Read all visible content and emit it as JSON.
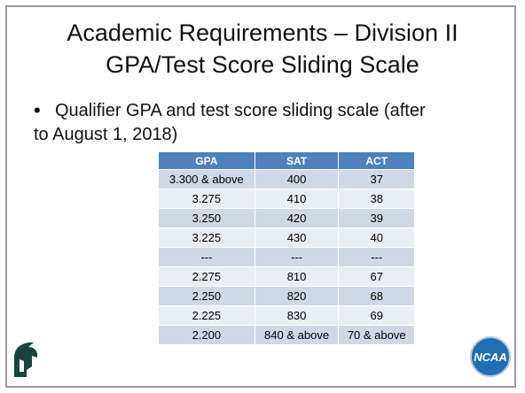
{
  "title": [
    "Academic Requirements – Division II",
    "GPA/Test Score Sliding Scale"
  ],
  "bullet": [
    "Qualifier GPA and test score sliding scale (after",
    "to August 1, 2018)"
  ],
  "table": {
    "header": [
      "GPA",
      "SAT",
      "ACT"
    ],
    "rows": [
      [
        "3.300 & above",
        "400",
        "37"
      ],
      [
        "3.275",
        "410",
        "38"
      ],
      [
        "3.250",
        "420",
        "39"
      ],
      [
        "3.225",
        "430",
        "40"
      ],
      [
        "---",
        "---",
        "---"
      ],
      [
        "2.275",
        "810",
        "67"
      ],
      [
        "2.250",
        "820",
        "68"
      ],
      [
        "2.225",
        "830",
        "69"
      ],
      [
        "2.200",
        "840 & above",
        "70 & above"
      ]
    ]
  },
  "logo_right": "NCAA"
}
